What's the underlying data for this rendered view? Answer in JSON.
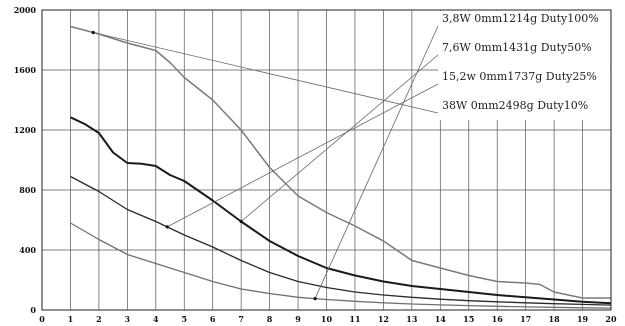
{
  "chart_data": {
    "type": "line",
    "title": "",
    "xlabel": "",
    "ylabel": "",
    "xlim": [
      0,
      20
    ],
    "ylim": [
      0,
      2000
    ],
    "x_ticks": [
      "0",
      "1",
      "2",
      "3",
      "4",
      "5",
      "6",
      "7",
      "8",
      "9",
      "10",
      "11",
      "12",
      "13",
      "14",
      "15",
      "16",
      "17",
      "18",
      "19",
      "20"
    ],
    "y_ticks": [
      "0",
      "400",
      "800",
      "1200",
      "1600",
      "2000"
    ],
    "grid": true,
    "legend_position": "top-right",
    "series": [
      {
        "name": "3,8W 0mm1214g  Duty100%",
        "color": "#707070",
        "width": 1.3,
        "marker_x": 9.6,
        "x": [
          1,
          2,
          3,
          4,
          5,
          6,
          7,
          8,
          9,
          10,
          11,
          12,
          13,
          14,
          15,
          16,
          17,
          18,
          19,
          20
        ],
        "y": [
          580,
          470,
          370,
          310,
          250,
          190,
          140,
          110,
          85,
          70,
          58,
          48,
          40,
          34,
          29,
          25,
          21,
          18,
          15,
          13
        ]
      },
      {
        "name": "7,6W 0mm1431g  Duty50%",
        "color": "#1a1a1a",
        "width": 2.0,
        "marker_x": 7,
        "x": [
          1,
          1.5,
          2,
          2.5,
          3,
          3.5,
          4,
          4.5,
          5,
          6,
          7,
          8,
          9,
          10,
          11,
          12,
          13,
          14,
          15,
          16,
          17,
          18,
          19,
          20
        ],
        "y": [
          1285,
          1240,
          1180,
          1050,
          980,
          975,
          960,
          900,
          860,
          730,
          590,
          460,
          360,
          280,
          230,
          190,
          160,
          140,
          120,
          100,
          85,
          70,
          55,
          45
        ]
      },
      {
        "name": "15,2w 0mm1737g  Duty25%",
        "color": "#2a2a2a",
        "width": 1.3,
        "marker_x": 4.4,
        "x": [
          1,
          2,
          3,
          4,
          5,
          6,
          7,
          8,
          9,
          10,
          11,
          12,
          13,
          14,
          15,
          16,
          17,
          18,
          19,
          20
        ],
        "y": [
          890,
          790,
          670,
          590,
          500,
          420,
          330,
          250,
          190,
          150,
          120,
          100,
          85,
          72,
          62,
          55,
          48,
          42,
          37,
          33
        ]
      },
      {
        "name": "38W 0mm2498g   Duty10%",
        "color": "#7a7a7a",
        "width": 1.5,
        "marker_x": 1.8,
        "x": [
          1,
          2,
          3,
          4,
          4.5,
          5,
          6,
          7,
          8,
          9,
          10,
          11,
          12,
          13,
          14,
          15,
          16,
          17,
          17.5,
          18,
          19,
          20
        ],
        "y": [
          1890,
          1840,
          1780,
          1730,
          1650,
          1550,
          1400,
          1200,
          950,
          760,
          650,
          560,
          460,
          330,
          280,
          230,
          190,
          180,
          170,
          120,
          80,
          80
        ]
      }
    ]
  }
}
